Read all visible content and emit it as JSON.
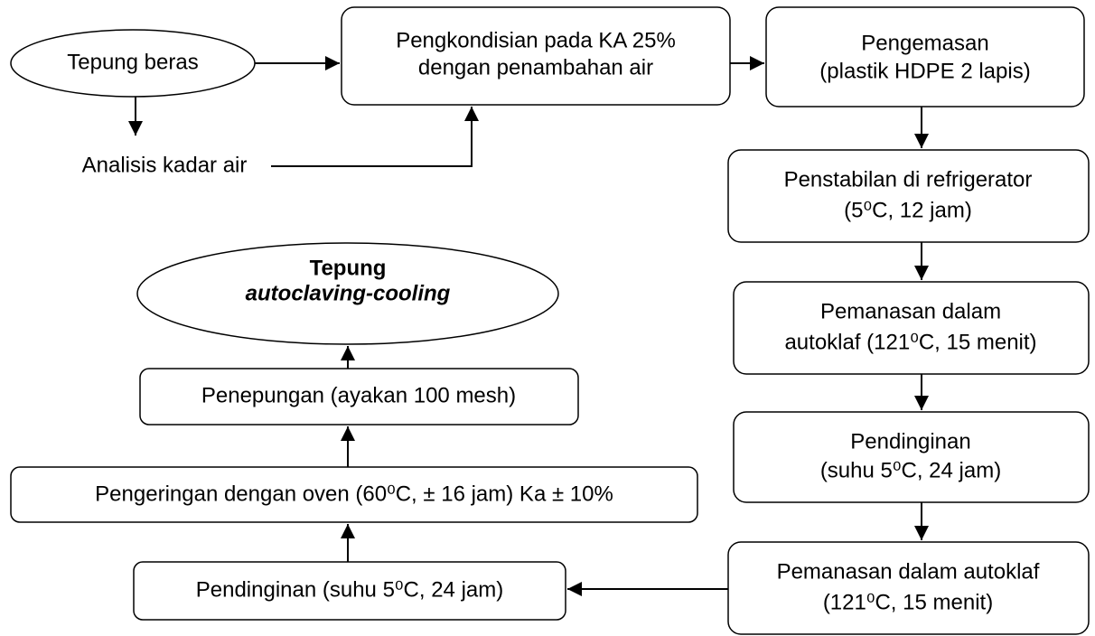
{
  "nodes": [
    {
      "lines": [
        "Tepung beras"
      ]
    },
    {
      "lines": [
        "Pengkondisian pada KA 25%",
        "dengan penambahan air"
      ]
    },
    {
      "lines": [
        "Pengemasan",
        "(plastik HDPE 2 lapis)"
      ]
    },
    {
      "lines": [
        "Analisis kadar air"
      ]
    },
    {
      "lines": [
        "Penstabilan di refrigerator",
        "(5⁰C, 12 jam)"
      ]
    },
    {
      "lines": [
        "Pemanasan dalam",
        "autoklaf (121⁰C, 15 menit)"
      ]
    },
    {
      "lines": [
        "Pendinginan",
        "(suhu 5⁰C, 24 jam)"
      ]
    },
    {
      "lines": [
        "Pemanasan dalam autoklaf",
        "(121⁰C, 15 menit)"
      ]
    },
    {
      "lines": [
        "Pendinginan (suhu 5⁰C, 24 jam)"
      ]
    },
    {
      "lines": [
        "Pengeringan dengan oven (60⁰C, ± 16 jam) Ka ± 10%"
      ]
    },
    {
      "lines": [
        "Penepungan (ayakan 100 mesh)"
      ]
    },
    {
      "lines": [
        "Tepung",
        "autoclaving-cooling"
      ]
    }
  ]
}
